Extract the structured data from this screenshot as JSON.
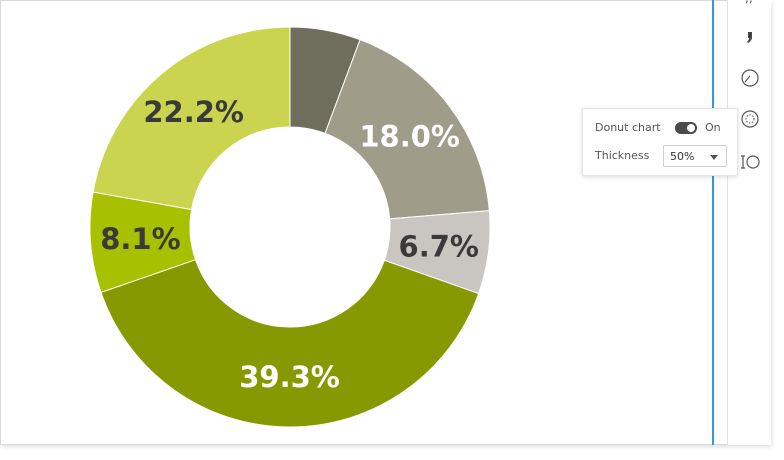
{
  "chart_data": {
    "type": "pie",
    "donut": true,
    "slices": [
      {
        "value": 5.7,
        "label": "",
        "color": "#6f6d5c",
        "label_color": "#ffffff"
      },
      {
        "value": 18.0,
        "label": "18.0%",
        "color": "#9f9c89",
        "label_color": "#ffffff"
      },
      {
        "value": 6.7,
        "label": "6.7%",
        "color": "#c9c6c2",
        "label_color": "#3a3a3a"
      },
      {
        "value": 39.3,
        "label": "39.3%",
        "color": "#879900",
        "label_color": "#ffffff"
      },
      {
        "value": 8.1,
        "label": "8.1%",
        "color": "#a7c100",
        "label_color": "#3a3a3a"
      },
      {
        "value": 22.2,
        "label": "22.2%",
        "color": "#cbd44f",
        "label_color": "#3a3a3a"
      }
    ]
  },
  "popover": {
    "donut_label": "Donut chart",
    "donut_state": "On",
    "thickness_label": "Thickness",
    "thickness_value": "50%"
  },
  "toolbar": {
    "icons": [
      "quote-icon",
      "gauge-icon",
      "donut-icon",
      "thickness-icon"
    ]
  }
}
